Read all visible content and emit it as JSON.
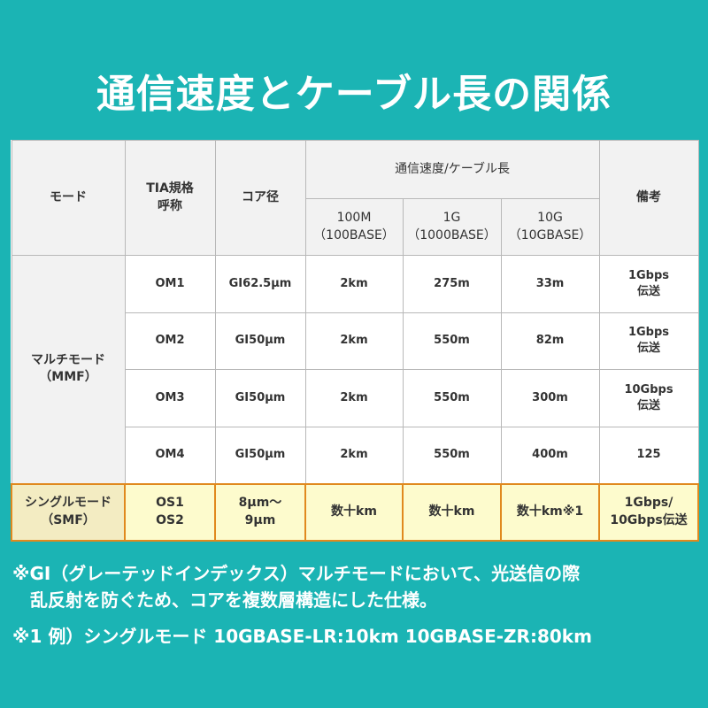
{
  "title": "通信速度とケーブル長の関係",
  "header": {
    "mode": "モード",
    "tia": "TIA規格\n呼称",
    "core": "コア径",
    "speed_group": "通信速度/ケーブル長",
    "c100m": "100M\n（100BASE）",
    "c1g": "1G\n（1000BASE）",
    "c10g": "10G\n（10GBASE）",
    "remarks": "備考"
  },
  "mmf_label": "マルチモード\n（MMF）",
  "rows": [
    {
      "tia": "OM1",
      "core": "GI62.5μm",
      "s100": "2km",
      "s1g": "275m",
      "s10g": "33m",
      "remarks": "1Gbps\n伝送"
    },
    {
      "tia": "OM2",
      "core": "GI50μm",
      "s100": "2km",
      "s1g": "550m",
      "s10g": "82m",
      "remarks": "1Gbps\n伝送"
    },
    {
      "tia": "OM3",
      "core": "GI50μm",
      "s100": "2km",
      "s1g": "550m",
      "s10g": "300m",
      "remarks": "10Gbps\n伝送"
    },
    {
      "tia": "OM4",
      "core": "GI50μm",
      "s100": "2km",
      "s1g": "550m",
      "s10g": "400m",
      "remarks": "125"
    }
  ],
  "smf": {
    "mode": "シングルモード\n（SMF）",
    "tia": "OS1\nOS2",
    "core": "8μm～\n9μm",
    "s100": "数十km",
    "s1g": "数十km",
    "s10g": "数十km※1",
    "remarks": "1Gbps/\n10Gbps伝送"
  },
  "notes": [
    "※GI（グレーテッドインデックス）マルチモードにおいて、光送信の際",
    "　乱反射を防ぐため、コアを複数層構造にした仕様。",
    "※1 例）シングルモード 10GBASE-LR:10km 10GBASE-ZR:80km"
  ]
}
